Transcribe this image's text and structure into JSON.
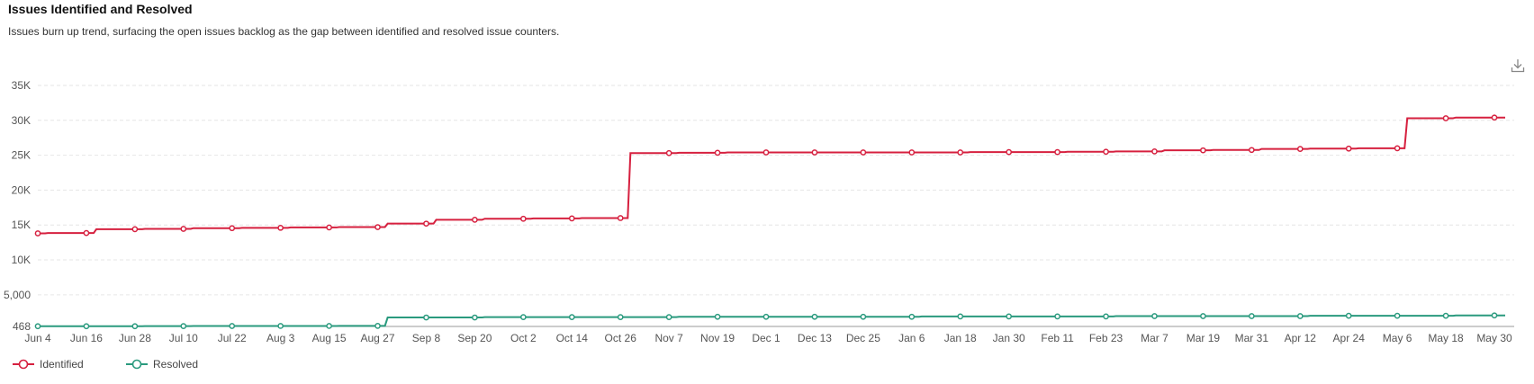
{
  "header": {
    "title": "Issues Identified and Resolved",
    "subtitle": "Issues burn up trend, surfacing the open issues backlog as the gap between identified and resolved issue counters."
  },
  "toolbar": {
    "download_icon": "download-icon"
  },
  "colors": {
    "identified": "#d6203f",
    "resolved": "#2a9a7e",
    "grid": "#e6e6e6",
    "axis": "#999999"
  },
  "chart_data": {
    "type": "line",
    "title": "Issues Identified and Resolved",
    "ytick_labels": [
      "468",
      "5,000",
      "10K",
      "15K",
      "20K",
      "25K",
      "30K",
      "35K"
    ],
    "ytick_values": [
      468,
      5000,
      10000,
      15000,
      20000,
      25000,
      30000,
      35000
    ],
    "ylim": [
      468,
      35000
    ],
    "grid": true,
    "legend": "bottom-left",
    "x": [
      "Jun 4",
      "Jun 16",
      "Jun 28",
      "Jul 10",
      "Jul 22",
      "Aug 3",
      "Aug 15",
      "Aug 27",
      "Sep 8",
      "Sep 20",
      "Oct 2",
      "Oct 14",
      "Oct 26",
      "Nov 7",
      "Nov 19",
      "Dec 1",
      "Dec 13",
      "Dec 25",
      "Jan 6",
      "Jan 18",
      "Jan 30",
      "Feb 11",
      "Feb 23",
      "Mar 7",
      "Mar 19",
      "Mar 31",
      "Apr 12",
      "Apr 24",
      "May 6",
      "May 18",
      "May 30"
    ],
    "series": [
      {
        "name": "Identified",
        "values": [
          13800,
          13850,
          14400,
          14450,
          14550,
          14600,
          14650,
          14700,
          15200,
          15750,
          15900,
          15950,
          16000,
          25300,
          25350,
          25400,
          25400,
          25400,
          25400,
          25400,
          25450,
          25450,
          25500,
          25550,
          25700,
          25750,
          25900,
          25950,
          26000,
          30300,
          30400
        ]
      },
      {
        "name": "Resolved",
        "values": [
          500,
          500,
          500,
          520,
          530,
          540,
          540,
          550,
          1750,
          1750,
          1800,
          1800,
          1800,
          1800,
          1850,
          1850,
          1850,
          1850,
          1850,
          1900,
          1900,
          1900,
          1900,
          1950,
          1950,
          1950,
          1950,
          2000,
          2000,
          2000,
          2050
        ]
      }
    ]
  }
}
